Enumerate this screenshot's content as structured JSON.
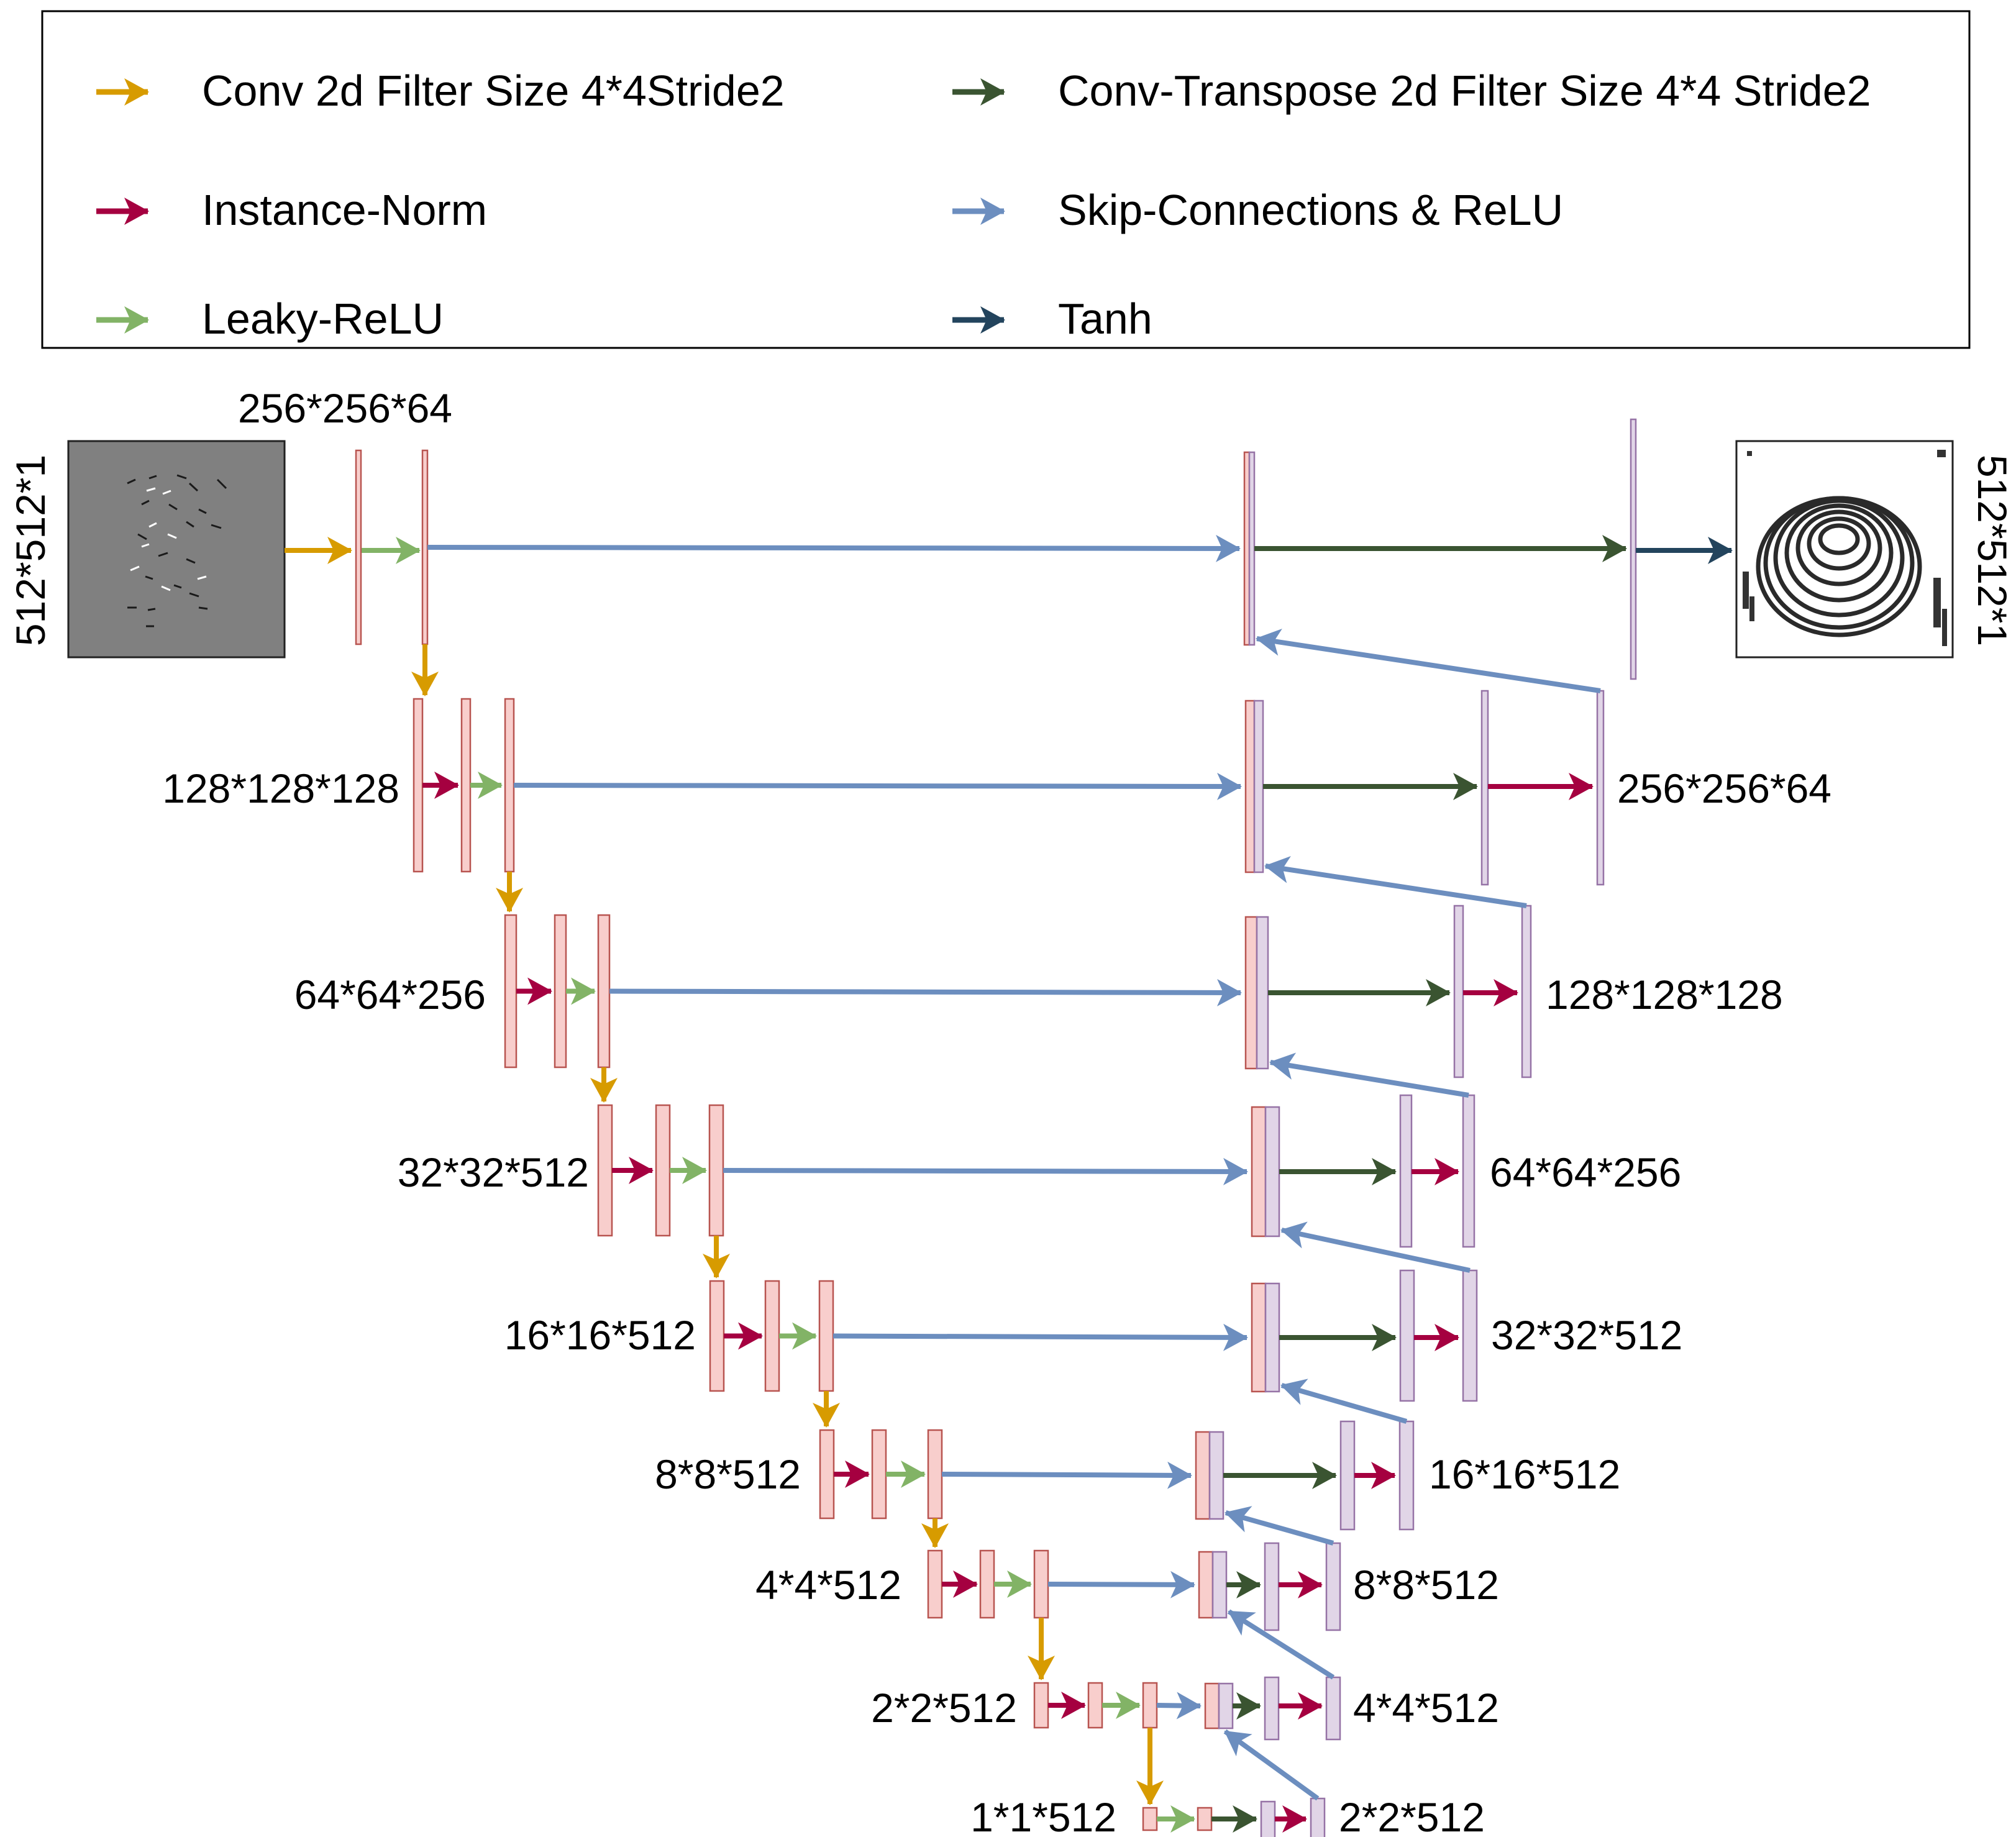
{
  "legend": {
    "items": [
      {
        "key": "conv",
        "label": "Conv 2d Filter Size 4*4Stride2",
        "color": "#d79b00"
      },
      {
        "key": "inorm",
        "label": "Instance-Norm",
        "color": "#a50040"
      },
      {
        "key": "lrelu",
        "label": "Leaky-ReLU",
        "color": "#82b366"
      },
      {
        "key": "convt",
        "label": "Conv-Transpose 2d Filter Size 4*4 Stride2",
        "color": "#3a5431"
      },
      {
        "key": "skip",
        "label": "Skip-Connections & ReLU",
        "color": "#6c8ebf"
      },
      {
        "key": "tanh",
        "label": "Tanh",
        "color": "#23445d"
      }
    ]
  },
  "encoder_labels": [
    "256*256*64",
    "128*128*128",
    "64*64*256",
    "32*32*512",
    "16*16*512",
    "8*8*512",
    "4*4*512",
    "2*2*512",
    "1*1*512"
  ],
  "decoder_labels": [
    "256*256*64",
    "128*128*128",
    "64*64*256",
    "32*32*512",
    "16*16*512",
    "8*8*512",
    "4*4*512",
    "2*2*512"
  ],
  "input_label": "512*512*1",
  "output_label": "512*512*1",
  "images": {
    "input": "sparse-minutiae-map",
    "output": "fingerprint"
  },
  "colors": {
    "encoder_fill": "#f8cecc",
    "encoder_stroke": "#b85450",
    "decoder_fill": "#e1d5e7",
    "decoder_stroke": "#9673a6"
  }
}
